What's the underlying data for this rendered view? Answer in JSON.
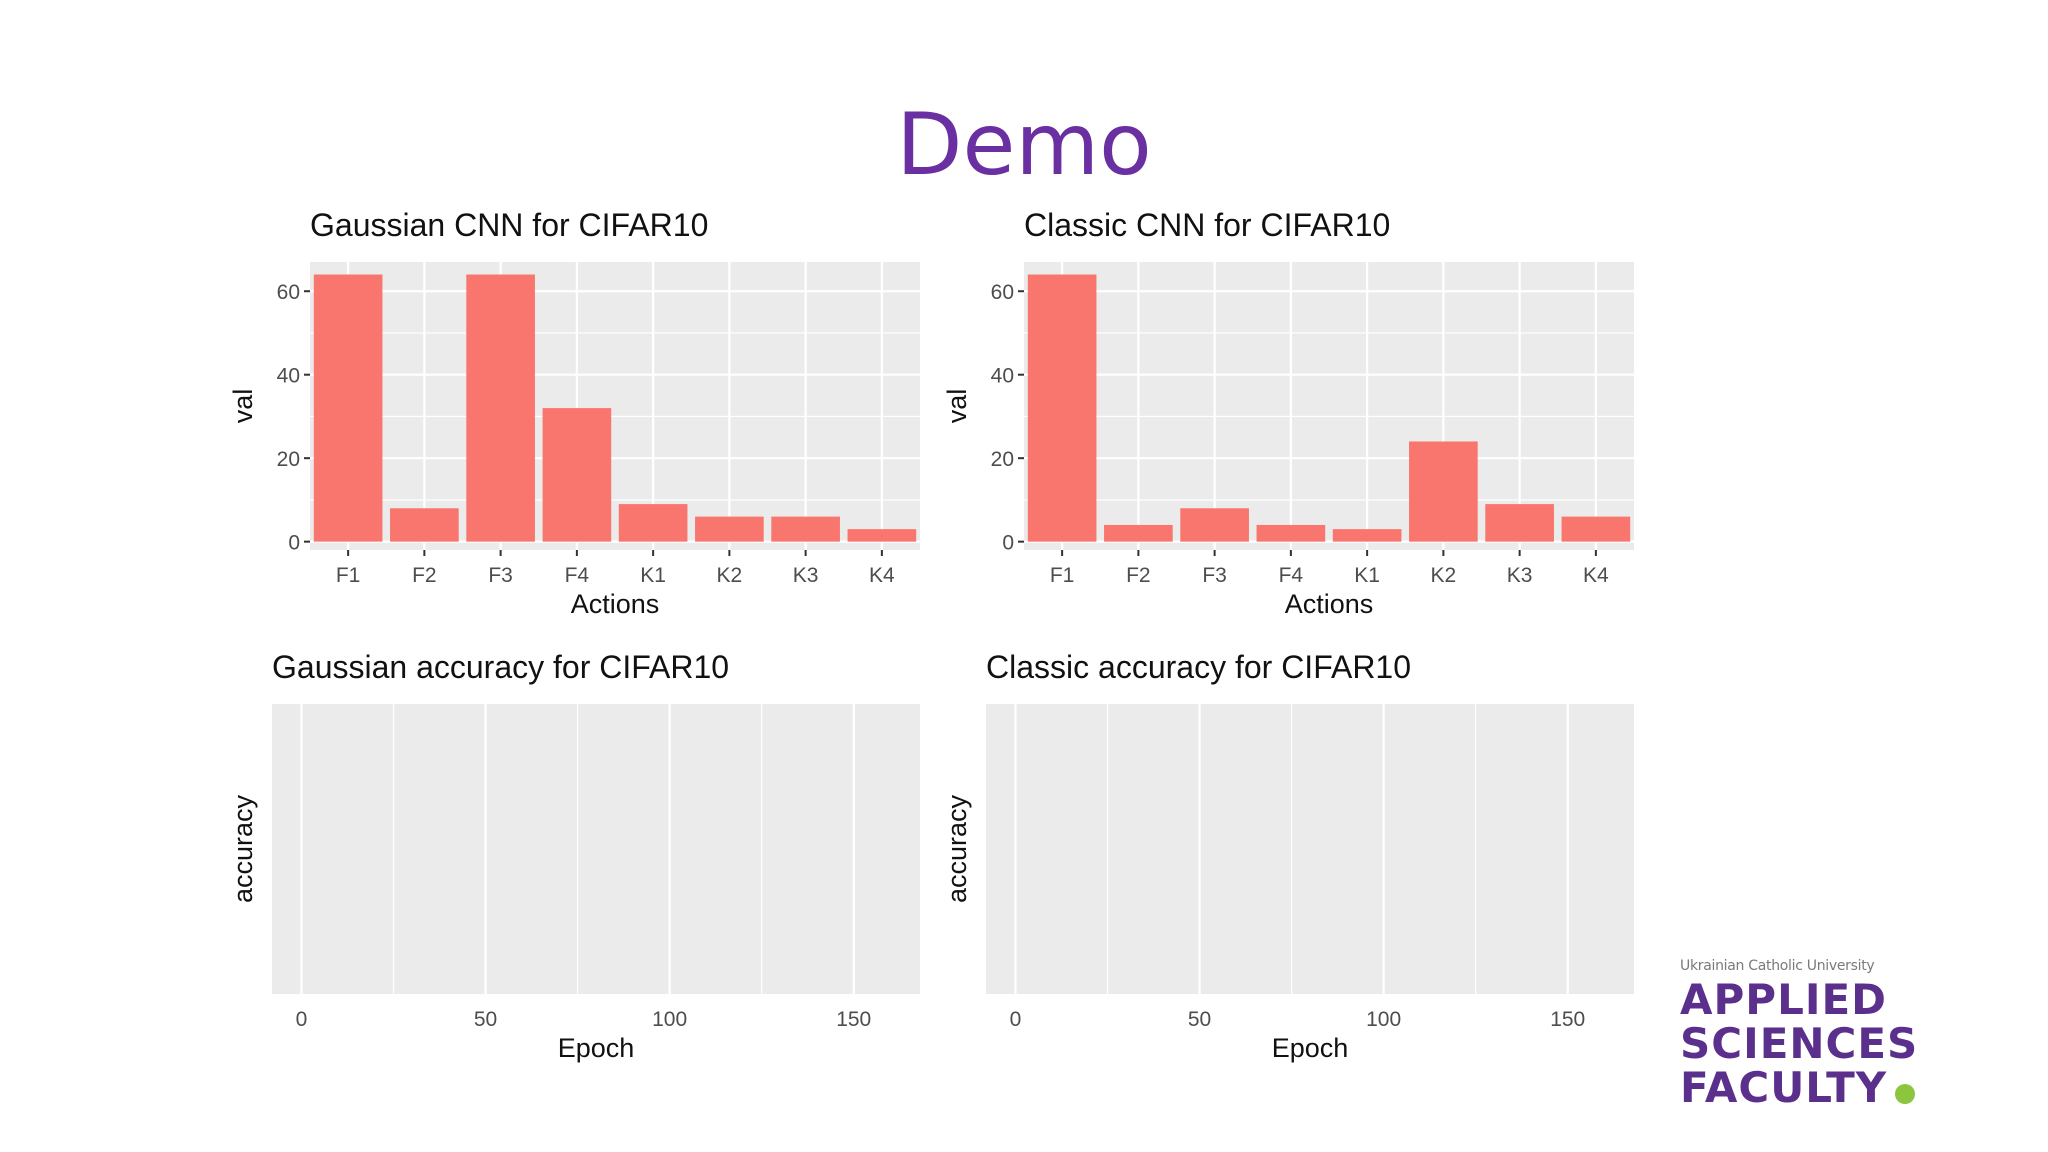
{
  "slide": {
    "title": "Demo"
  },
  "colors": {
    "bar": "#f8766d",
    "panel": "#ebebeb",
    "grid": "#ffffff",
    "title_purple": "#6a2fa0",
    "logo_purple": "#5b2f8c",
    "logo_dot": "#8cc63f"
  },
  "logo": {
    "university": "Ukrainian Catholic University",
    "line1": "APPLIED",
    "line2": "SCIENCES",
    "line3": "FACULTY"
  },
  "chart_data": [
    {
      "type": "bar",
      "title": "Gaussian CNN for  CIFAR10",
      "xlabel": "Actions",
      "ylabel": "val",
      "categories": [
        "F1",
        "F2",
        "F3",
        "F4",
        "K1",
        "K2",
        "K3",
        "K4"
      ],
      "values": [
        64,
        8,
        64,
        32,
        9,
        6,
        6,
        3
      ],
      "ylim": [
        -2,
        67
      ],
      "yticks": [
        0,
        20,
        40,
        60
      ],
      "grid": true
    },
    {
      "type": "bar",
      "title": "Classic CNN for  CIFAR10",
      "xlabel": "Actions",
      "ylabel": "val",
      "categories": [
        "F1",
        "F2",
        "F3",
        "F4",
        "K1",
        "K2",
        "K3",
        "K4"
      ],
      "values": [
        64,
        4,
        8,
        4,
        3,
        24,
        9,
        6
      ],
      "ylim": [
        -2,
        67
      ],
      "yticks": [
        0,
        20,
        40,
        60
      ],
      "grid": true
    },
    {
      "type": "line",
      "title": "Gaussian accuracy for  CIFAR10",
      "xlabel": "Epoch",
      "ylabel": "accuracy",
      "x": [],
      "y": [],
      "xlim": [
        -8,
        168
      ],
      "xticks": [
        0,
        50,
        100,
        150
      ],
      "grid": true
    },
    {
      "type": "line",
      "title": "Classic accuracy for  CIFAR10",
      "xlabel": "Epoch",
      "ylabel": "accuracy",
      "x": [],
      "y": [],
      "xlim": [
        -8,
        168
      ],
      "xticks": [
        0,
        50,
        100,
        150
      ],
      "grid": true
    }
  ]
}
